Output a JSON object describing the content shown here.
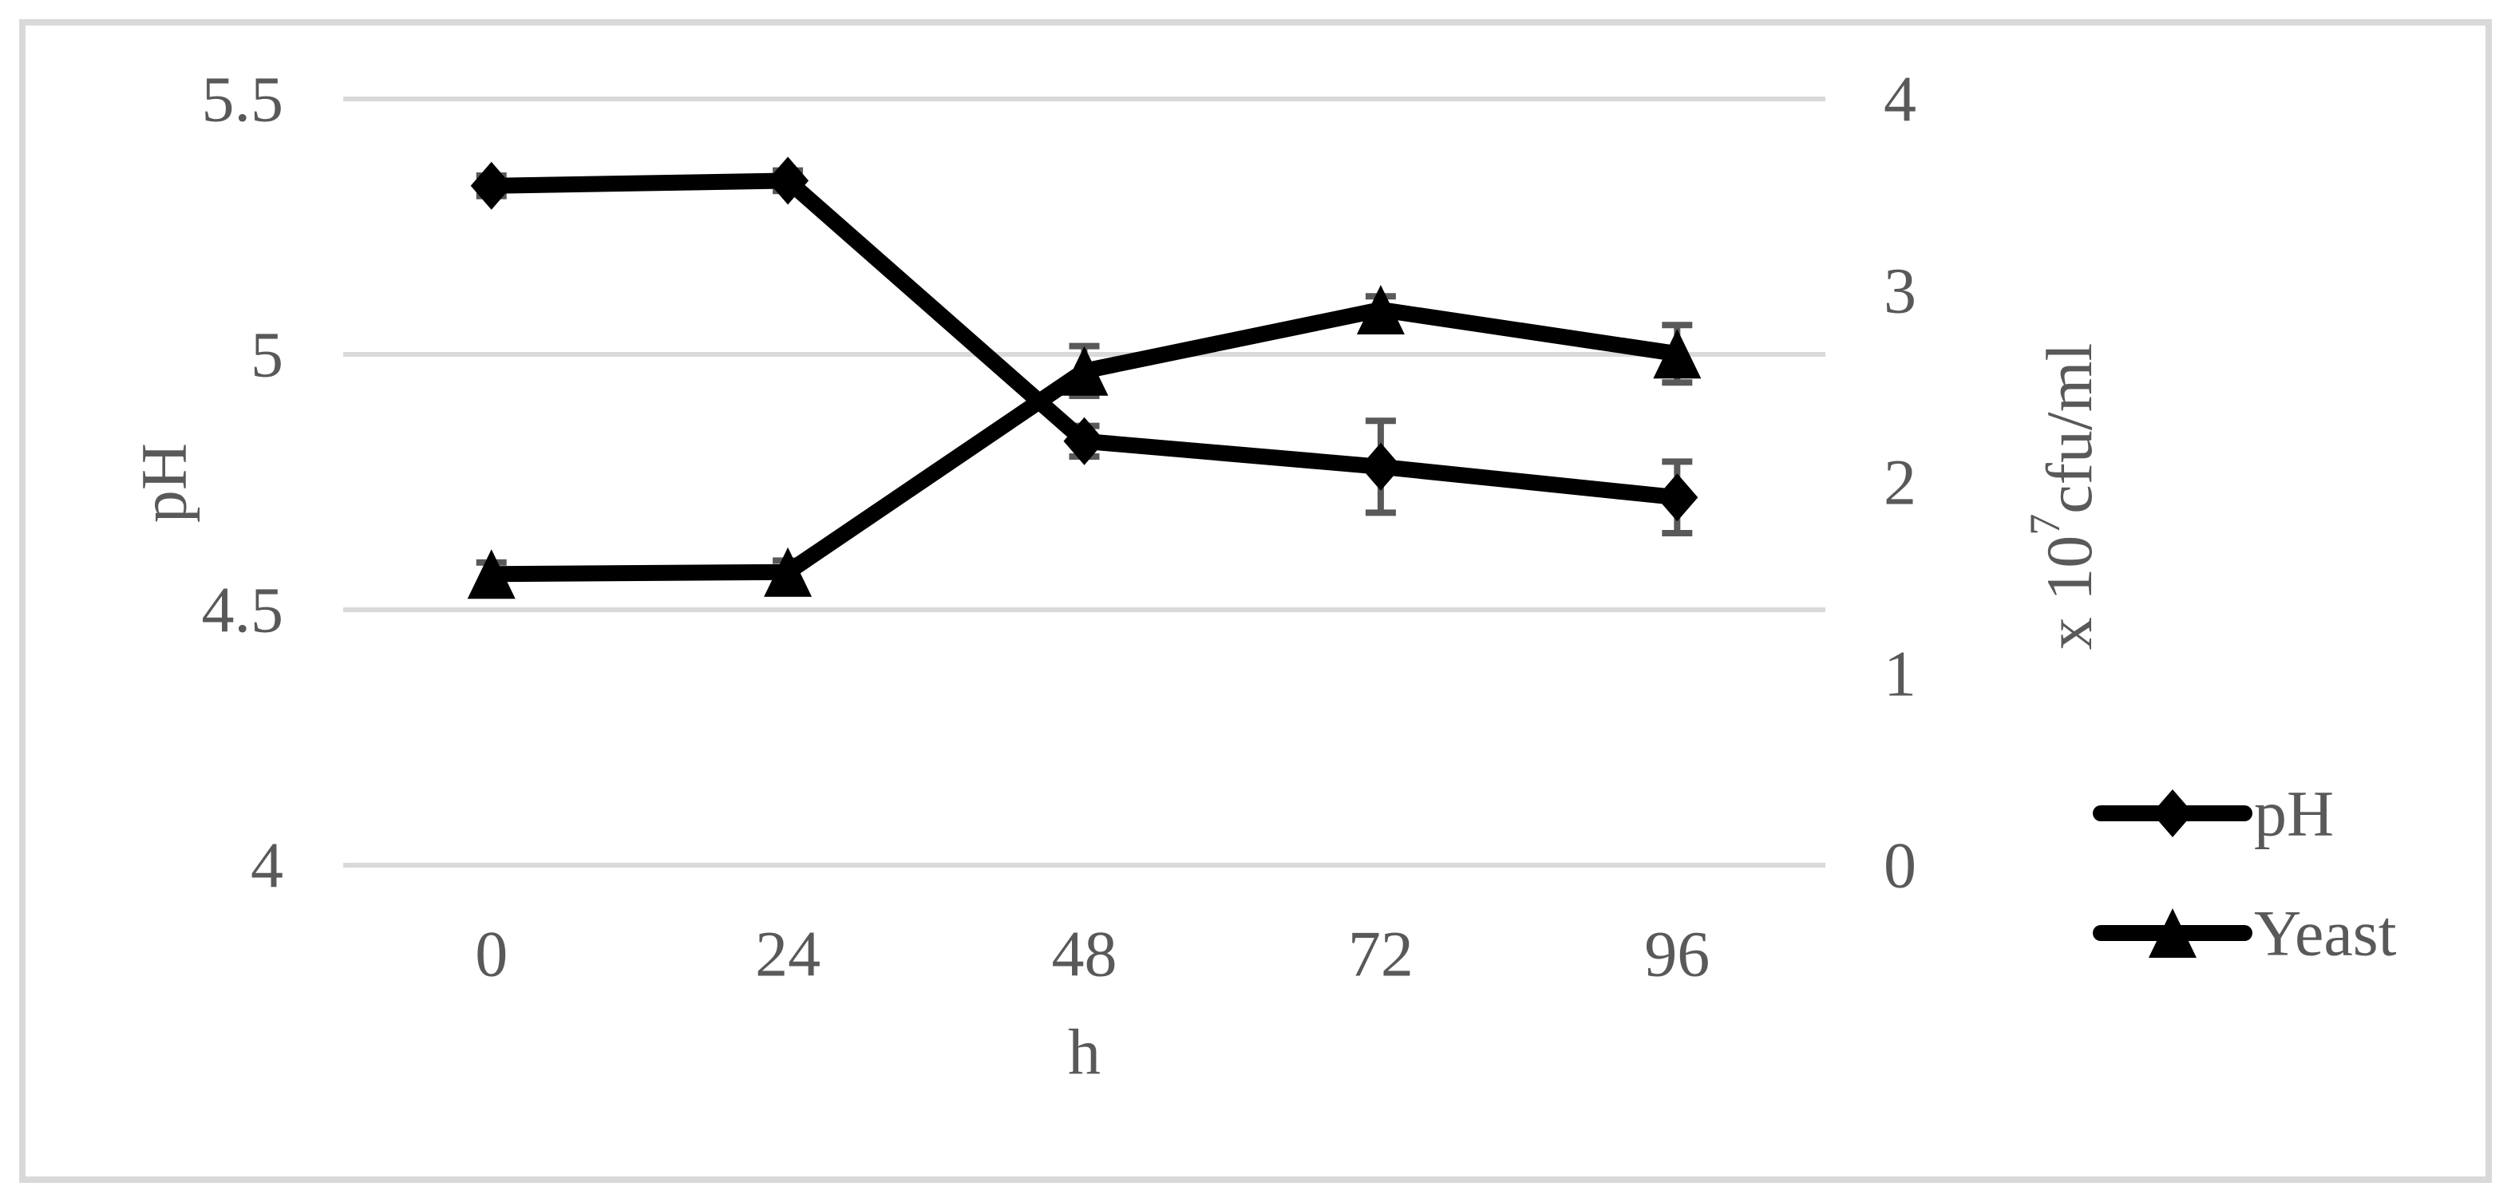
{
  "figure": {
    "background": "#ffffff",
    "border_color": "#d9d9d9"
  },
  "colors": {
    "series": "#000000",
    "text": "#595959",
    "gridline": "#d9d9d9",
    "error_bar": "#595959"
  },
  "chart_data": {
    "type": "line",
    "x": [
      0,
      24,
      48,
      72,
      96
    ],
    "x_tick_labels": [
      "0",
      "24",
      "48",
      "72",
      "96"
    ],
    "xlabel": "h",
    "grid": true,
    "series": [
      {
        "name": "pH",
        "axis": "left",
        "marker": "diamond",
        "color": "#000000",
        "values": [
          5.33,
          5.34,
          4.83,
          4.78,
          4.72
        ],
        "errors": [
          0.02,
          0.02,
          0.03,
          0.09,
          0.07
        ]
      },
      {
        "name": "Yeast",
        "axis": "right",
        "marker": "triangle",
        "color": "#000000",
        "values": [
          1.52,
          1.53,
          2.58,
          2.9,
          2.67
        ],
        "errors": [
          0.06,
          0.06,
          0.13,
          0.07,
          0.15
        ]
      }
    ],
    "left_axis": {
      "title": "pH",
      "min": 4,
      "max": 5.5,
      "tick_values": [
        5.5,
        5,
        4.5,
        4
      ],
      "tick_labels": [
        "5.5",
        "5",
        "4.5",
        "4"
      ]
    },
    "right_axis": {
      "title_prefix": "x 10",
      "title_superscript": "7",
      "title_suffix": "cfu/ml",
      "min": 0,
      "max": 4,
      "tick_values": [
        4,
        3,
        2,
        1,
        0
      ],
      "tick_labels": [
        "4",
        "3",
        "2",
        "1",
        "0"
      ]
    },
    "legend": {
      "position": "right-bottom",
      "entries": [
        {
          "label": "pH",
          "marker": "diamond"
        },
        {
          "label": "Yeast",
          "marker": "triangle"
        }
      ]
    }
  }
}
